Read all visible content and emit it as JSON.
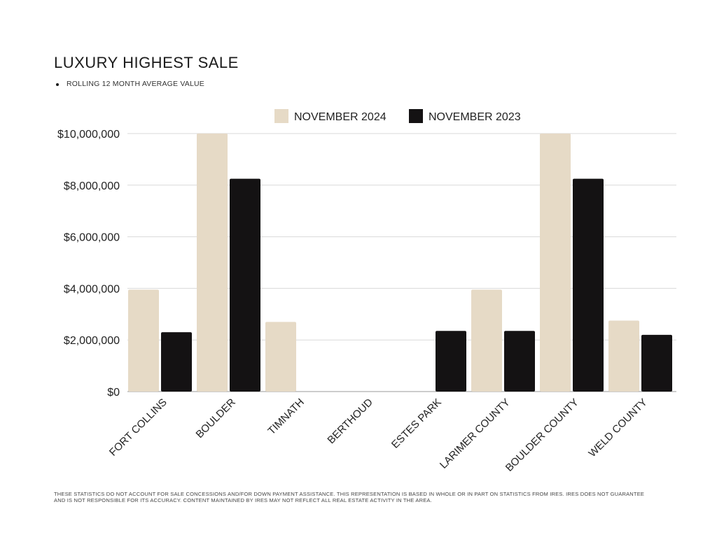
{
  "title": "LUXURY HIGHEST SALE",
  "subtitle": "ROLLING 12 MONTH AVERAGE VALUE",
  "footnote": "THESE STATISTICS DO NOT ACCOUNT FOR SALE CONCESSIONS AND/FOR DOWN PAYMENT ASSISTANCE. THIS REPRESENTATION IS BASED IN WHOLE OR IN PART ON STATISTICS FROM IRES. IRES DOES NOT GUARANTEE AND IS NOT RESPONSIBLE FOR ITS ACCURACY. CONTENT MAINTAINED BY IRES MAY NOT REFLECT ALL REAL ESTATE ACTIVITY IN THE AREA.",
  "colors": {
    "nov_2024": "#e6dac6",
    "nov_2023": "#141213",
    "grid": "#d9d9d9",
    "axis_text": "#222222"
  },
  "chart_data": {
    "type": "bar",
    "title": "LUXURY HIGHEST SALE",
    "subtitle": "ROLLING 12 MONTH AVERAGE VALUE",
    "categories": [
      "FORT COLLINS",
      "BOULDER",
      "TIMNATH",
      "BERTHOUD",
      "ESTES PARK",
      "LARIMER COUNTY",
      "BOULDER COUNTY",
      "WELD COUNTY"
    ],
    "series": [
      {
        "name": "NOVEMBER 2024",
        "values": [
          3950000,
          10000000,
          2700000,
          0,
          0,
          3950000,
          10000000,
          2750000
        ]
      },
      {
        "name": "NOVEMBER 2023",
        "values": [
          2300000,
          8250000,
          0,
          0,
          2350000,
          2350000,
          8250000,
          2200000
        ]
      }
    ],
    "ylim": [
      0,
      10000000
    ],
    "yticks": [
      0,
      2000000,
      4000000,
      6000000,
      8000000,
      10000000
    ],
    "ytick_labels": [
      "$0",
      "$2,000,000",
      "$4,000,000",
      "$6,000,000",
      "$8,000,000",
      "$10,000,000"
    ],
    "xlabel": "",
    "ylabel": "",
    "grid": true,
    "legend_position": "top-center"
  }
}
